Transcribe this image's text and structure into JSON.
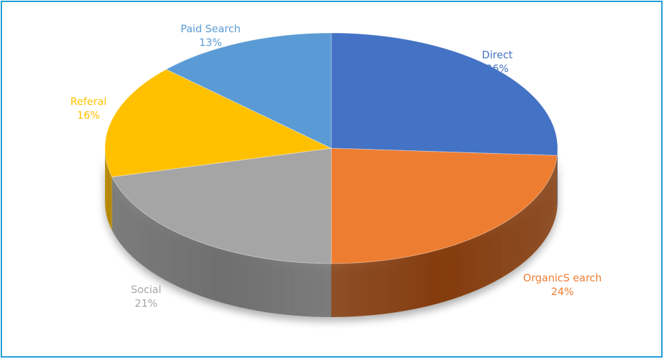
{
  "chart_data": {
    "type": "pie",
    "title": "",
    "style": "3d",
    "slices": [
      {
        "label": "Direct",
        "value": 26,
        "percent_label": "26%",
        "color": "#4472c4",
        "side_color": "#2f5597",
        "label_color": "#4472c4"
      },
      {
        "label": "OrganicS earch",
        "value": 24,
        "percent_label": "24%",
        "color": "#ed7d31",
        "side_color": "#843c0c",
        "label_color": "#ed7d31"
      },
      {
        "label": "Social",
        "value": 21,
        "percent_label": "21%",
        "color": "#a5a5a5",
        "side_color": "#6f6f6f",
        "label_color": "#a5a5a5"
      },
      {
        "label": "Referal",
        "value": 16,
        "percent_label": "16%",
        "color": "#ffc000",
        "side_color": "#b38600",
        "label_color": "#ffc000"
      },
      {
        "label": "Paid Search",
        "value": 13,
        "percent_label": "13%",
        "color": "#5b9bd5",
        "side_color": "#3e6f9e",
        "label_color": "#5b9bd5"
      }
    ],
    "legend": "none",
    "frame_color": "#1a9bd7"
  }
}
